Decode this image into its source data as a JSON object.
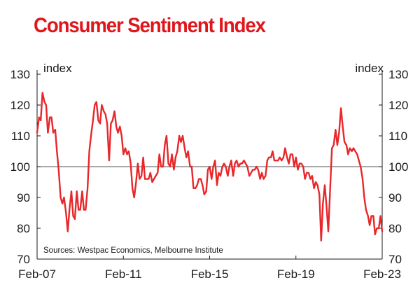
{
  "chart_data": {
    "type": "line",
    "title": "Consumer Sentiment Index",
    "ylabel_left": "index",
    "ylabel_right": "index",
    "ylim": [
      70,
      130
    ],
    "yticks": [
      70,
      80,
      90,
      100,
      110,
      120,
      130
    ],
    "x_range": [
      "Feb-07",
      "Feb-23"
    ],
    "xticks": [
      {
        "label": "Feb-07",
        "t": 2007.08
      },
      {
        "label": "Feb-11",
        "t": 2011.08
      },
      {
        "label": "Feb-15",
        "t": 2015.08
      },
      {
        "label": "Feb-19",
        "t": 2019.08
      },
      {
        "label": "Feb-23",
        "t": 2023.08
      }
    ],
    "x_start": 2007.08,
    "x_end": 2023.08,
    "reference_line": 100,
    "source": "Sources: Westpac Economics, Melbourne Institute",
    "colors": {
      "line": "#e8272a",
      "title": "#e0161d",
      "axis": "#1a1a1a",
      "reference": "#555555"
    },
    "series": [
      {
        "name": "Consumer Sentiment Index",
        "points": [
          [
            2007.08,
            111
          ],
          [
            2007.17,
            116
          ],
          [
            2007.25,
            115
          ],
          [
            2007.33,
            124
          ],
          [
            2007.42,
            121
          ],
          [
            2007.5,
            120
          ],
          [
            2007.58,
            111
          ],
          [
            2007.67,
            116
          ],
          [
            2007.75,
            116
          ],
          [
            2007.83,
            111
          ],
          [
            2007.92,
            112
          ],
          [
            2008.0,
            105
          ],
          [
            2008.08,
            99
          ],
          [
            2008.17,
            90
          ],
          [
            2008.25,
            88
          ],
          [
            2008.33,
            90
          ],
          [
            2008.42,
            85
          ],
          [
            2008.5,
            79
          ],
          [
            2008.58,
            86
          ],
          [
            2008.67,
            92
          ],
          [
            2008.75,
            84
          ],
          [
            2008.83,
            83
          ],
          [
            2008.92,
            92
          ],
          [
            2009.0,
            86
          ],
          [
            2009.08,
            86
          ],
          [
            2009.17,
            92
          ],
          [
            2009.25,
            86
          ],
          [
            2009.33,
            86
          ],
          [
            2009.42,
            93
          ],
          [
            2009.5,
            105
          ],
          [
            2009.58,
            110
          ],
          [
            2009.67,
            115
          ],
          [
            2009.75,
            120
          ],
          [
            2009.83,
            121
          ],
          [
            2009.92,
            115
          ],
          [
            2010.0,
            114
          ],
          [
            2010.08,
            120
          ],
          [
            2010.17,
            118
          ],
          [
            2010.25,
            117
          ],
          [
            2010.33,
            114
          ],
          [
            2010.42,
            102
          ],
          [
            2010.5,
            114
          ],
          [
            2010.58,
            115
          ],
          [
            2010.67,
            118
          ],
          [
            2010.75,
            113
          ],
          [
            2010.83,
            111
          ],
          [
            2010.92,
            113
          ],
          [
            2011.0,
            110
          ],
          [
            2011.08,
            104
          ],
          [
            2011.17,
            106
          ],
          [
            2011.25,
            104
          ],
          [
            2011.33,
            105
          ],
          [
            2011.42,
            101
          ],
          [
            2011.5,
            93
          ],
          [
            2011.58,
            90
          ],
          [
            2011.67,
            95
          ],
          [
            2011.75,
            101
          ],
          [
            2011.83,
            96
          ],
          [
            2011.92,
            97
          ],
          [
            2012.0,
            103
          ],
          [
            2012.08,
            96
          ],
          [
            2012.17,
            96
          ],
          [
            2012.25,
            96
          ],
          [
            2012.33,
            98
          ],
          [
            2012.42,
            95
          ],
          [
            2012.5,
            96
          ],
          [
            2012.58,
            97
          ],
          [
            2012.67,
            98
          ],
          [
            2012.75,
            104
          ],
          [
            2012.83,
            100
          ],
          [
            2012.92,
            100
          ],
          [
            2013.0,
            107
          ],
          [
            2013.08,
            110
          ],
          [
            2013.17,
            101
          ],
          [
            2013.25,
            100
          ],
          [
            2013.33,
            104
          ],
          [
            2013.42,
            99
          ],
          [
            2013.5,
            103
          ],
          [
            2013.58,
            105
          ],
          [
            2013.67,
            110
          ],
          [
            2013.75,
            108
          ],
          [
            2013.83,
            110
          ],
          [
            2013.92,
            106
          ],
          [
            2014.0,
            103
          ],
          [
            2014.08,
            105
          ],
          [
            2014.17,
            100
          ],
          [
            2014.25,
            100
          ],
          [
            2014.33,
            93
          ],
          [
            2014.42,
            93
          ],
          [
            2014.5,
            94
          ],
          [
            2014.58,
            96
          ],
          [
            2014.67,
            96
          ],
          [
            2014.75,
            94
          ],
          [
            2014.83,
            91
          ],
          [
            2014.92,
            92
          ],
          [
            2015.0,
            99
          ],
          [
            2015.08,
            100
          ],
          [
            2015.17,
            96
          ],
          [
            2015.25,
            100
          ],
          [
            2015.33,
            102
          ],
          [
            2015.42,
            94
          ],
          [
            2015.5,
            98
          ],
          [
            2015.58,
            97
          ],
          [
            2015.67,
            100
          ],
          [
            2015.75,
            101
          ],
          [
            2015.83,
            100
          ],
          [
            2015.92,
            97
          ],
          [
            2016.0,
            100
          ],
          [
            2016.08,
            102
          ],
          [
            2016.17,
            97
          ],
          [
            2016.25,
            101
          ],
          [
            2016.33,
            102
          ],
          [
            2016.42,
            100
          ],
          [
            2016.5,
            101
          ],
          [
            2016.58,
            101
          ],
          [
            2016.67,
            102
          ],
          [
            2016.75,
            101
          ],
          [
            2016.83,
            100
          ],
          [
            2016.92,
            97
          ],
          [
            2017.0,
            98
          ],
          [
            2017.08,
            99
          ],
          [
            2017.17,
            99
          ],
          [
            2017.25,
            100
          ],
          [
            2017.33,
            99
          ],
          [
            2017.42,
            96
          ],
          [
            2017.5,
            98
          ],
          [
            2017.58,
            96
          ],
          [
            2017.67,
            97
          ],
          [
            2017.75,
            102
          ],
          [
            2017.83,
            103
          ],
          [
            2017.92,
            103
          ],
          [
            2018.0,
            105
          ],
          [
            2018.08,
            102
          ],
          [
            2018.17,
            102
          ],
          [
            2018.25,
            102
          ],
          [
            2018.33,
            103
          ],
          [
            2018.42,
            102
          ],
          [
            2018.5,
            103
          ],
          [
            2018.58,
            106
          ],
          [
            2018.67,
            103
          ],
          [
            2018.75,
            101
          ],
          [
            2018.83,
            104
          ],
          [
            2018.92,
            104
          ],
          [
            2019.0,
            100
          ],
          [
            2019.08,
            103
          ],
          [
            2019.17,
            99
          ],
          [
            2019.25,
            101
          ],
          [
            2019.33,
            101
          ],
          [
            2019.42,
            100
          ],
          [
            2019.5,
            96
          ],
          [
            2019.58,
            98
          ],
          [
            2019.67,
            98
          ],
          [
            2019.75,
            96
          ],
          [
            2019.83,
            97
          ],
          [
            2019.92,
            93
          ],
          [
            2020.0,
            95
          ],
          [
            2020.08,
            94
          ],
          [
            2020.17,
            91
          ],
          [
            2020.25,
            76
          ],
          [
            2020.33,
            88
          ],
          [
            2020.42,
            94
          ],
          [
            2020.5,
            87
          ],
          [
            2020.58,
            79
          ],
          [
            2020.67,
            93
          ],
          [
            2020.75,
            106
          ],
          [
            2020.83,
            107
          ],
          [
            2020.92,
            112
          ],
          [
            2021.0,
            107
          ],
          [
            2021.08,
            111
          ],
          [
            2021.17,
            119
          ],
          [
            2021.25,
            113
          ],
          [
            2021.33,
            108
          ],
          [
            2021.42,
            107
          ],
          [
            2021.5,
            104
          ],
          [
            2021.58,
            106
          ],
          [
            2021.67,
            105
          ],
          [
            2021.75,
            106
          ],
          [
            2021.83,
            105
          ],
          [
            2021.92,
            104
          ],
          [
            2022.0,
            102
          ],
          [
            2022.08,
            100
          ],
          [
            2022.17,
            96
          ],
          [
            2022.25,
            90
          ],
          [
            2022.33,
            86
          ],
          [
            2022.42,
            84
          ],
          [
            2022.5,
            81
          ],
          [
            2022.58,
            84
          ],
          [
            2022.67,
            84
          ],
          [
            2022.75,
            78
          ],
          [
            2022.83,
            80
          ],
          [
            2022.92,
            80
          ],
          [
            2023.0,
            84
          ],
          [
            2023.08,
            79
          ]
        ]
      }
    ]
  }
}
